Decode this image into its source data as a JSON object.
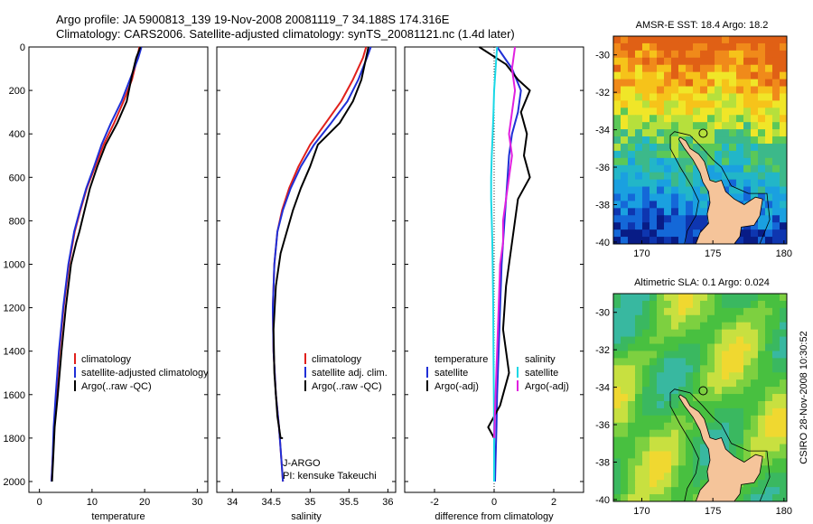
{
  "title": {
    "line1": "Argo profile: JA 5900813_139 19-Nov-2008 20081119_7 34.188S 174.316E",
    "line2": "Climatology: CARS2006. Satellite-adjusted climatology: synTS_20081121.nc (1.4d later)"
  },
  "side_label": "CSIRO 28-Nov-2008 10:30:52",
  "colors": {
    "climatology": "#e0201c",
    "satellite": "#1f2fd6",
    "argo": "#000000",
    "sat_diff": "#19d8e6",
    "argo_adj": "#e020e0"
  },
  "chart_data": [
    {
      "type": "line",
      "xlabel": "temperature",
      "ylabel": "",
      "xlim": [
        -2,
        32
      ],
      "ylim": [
        2050,
        0
      ],
      "xticks": [
        "0",
        "10",
        "20",
        "30"
      ],
      "yticks": [
        "0",
        "200",
        "400",
        "600",
        "800",
        "1000",
        "1200",
        "1400",
        "1600",
        "1800",
        "2000"
      ],
      "legend": [
        "climatology",
        "satellite-adjusted climatology",
        "Argo(..raw -QC)"
      ],
      "series": [
        {
          "name": "climatology",
          "color": "red",
          "x": [
            19.0,
            18.6,
            17.6,
            16.0,
            14.2,
            12.2,
            10.6,
            9.0,
            7.8,
            6.7,
            5.6,
            4.6,
            3.8,
            3.2,
            2.8,
            2.5,
            2.3
          ],
          "y": [
            0,
            50,
            150,
            250,
            350,
            450,
            550,
            650,
            750,
            850,
            1000,
            1200,
            1400,
            1600,
            1750,
            1900,
            2000
          ]
        },
        {
          "name": "satellite-adjusted climatology",
          "color": "blue",
          "x": [
            19.4,
            18.8,
            17.2,
            15.6,
            13.6,
            11.8,
            10.4,
            8.9,
            7.7,
            6.6,
            5.5,
            4.5,
            3.7,
            3.1,
            2.7,
            2.5,
            2.3
          ],
          "y": [
            0,
            50,
            150,
            250,
            350,
            450,
            550,
            650,
            750,
            850,
            1000,
            1200,
            1400,
            1600,
            1750,
            1900,
            2000
          ]
        },
        {
          "name": "Argo(..raw -QC)",
          "color": "black",
          "x": [
            19.2,
            18.4,
            17.6,
            16.6,
            14.8,
            12.6,
            11.0,
            9.6,
            8.6,
            7.6,
            7.0,
            6.0,
            5.0,
            4.2,
            3.5,
            2.9,
            2.6,
            2.4
          ],
          "y": [
            0,
            50,
            130,
            250,
            350,
            450,
            550,
            650,
            750,
            850,
            900,
            1000,
            1200,
            1400,
            1600,
            1750,
            1900,
            2000
          ]
        }
      ]
    },
    {
      "type": "line",
      "xlabel": "salinity",
      "xlim": [
        33.8,
        36.1
      ],
      "ylim": [
        2050,
        0
      ],
      "xticks": [
        "34",
        "34.5",
        "35",
        "35.5",
        "36"
      ],
      "legend": [
        "climatology",
        "satellite adj. clim.",
        "Argo(..raw -QC)"
      ],
      "annotations": [
        "J-ARGO",
        "PI: kensuke Takeuchi"
      ],
      "series": [
        {
          "name": "climatology",
          "color": "red",
          "x": [
            35.72,
            35.68,
            35.55,
            35.4,
            35.2,
            35.0,
            34.85,
            34.73,
            34.64,
            34.58,
            34.54,
            34.52,
            34.53,
            34.56,
            34.6,
            34.63,
            34.65
          ],
          "y": [
            0,
            50,
            150,
            250,
            350,
            450,
            550,
            650,
            750,
            850,
            1000,
            1200,
            1400,
            1600,
            1750,
            1900,
            2000
          ]
        },
        {
          "name": "satellite adj. clim.",
          "color": "blue",
          "x": [
            35.78,
            35.73,
            35.62,
            35.48,
            35.27,
            35.05,
            34.88,
            34.75,
            34.65,
            34.58,
            34.54,
            34.52,
            34.53,
            34.56,
            34.6,
            34.63,
            34.65
          ],
          "y": [
            0,
            50,
            150,
            250,
            350,
            450,
            550,
            650,
            750,
            850,
            1000,
            1200,
            1400,
            1600,
            1750,
            1900,
            2000
          ]
        },
        {
          "name": "Argo(..raw -QC)",
          "color": "black",
          "x": [
            35.75,
            35.72,
            35.66,
            35.55,
            35.38,
            35.1,
            35.0,
            34.88,
            34.78,
            34.7,
            34.62,
            34.56,
            34.53,
            34.54,
            34.58,
            34.62,
            34.65
          ],
          "y": [
            0,
            50,
            150,
            250,
            350,
            450,
            550,
            650,
            750,
            850,
            950,
            1100,
            1300,
            1500,
            1700,
            1800,
            1800
          ]
        }
      ]
    },
    {
      "type": "line",
      "xlabel": "difference from climatology",
      "xlim": [
        -3,
        3
      ],
      "ylim": [
        2050,
        0
      ],
      "xticks": [
        "-2",
        "0",
        "2"
      ],
      "legend_temperature": [
        "temperature",
        "satellite",
        "Argo(-adj)"
      ],
      "legend_salinity": [
        "salinity",
        "satellite",
        "Argo(-adj)"
      ],
      "series": [
        {
          "name": "temperature satellite",
          "color": "blue",
          "x": [
            0.1,
            0.6,
            0.9,
            0.8,
            0.6,
            0.5,
            0.45,
            0.4,
            0.35,
            0.3,
            0.25,
            0.2,
            0.15,
            0.1,
            0.08,
            0.05,
            0.03
          ],
          "y": [
            0,
            100,
            200,
            300,
            400,
            500,
            600,
            700,
            800,
            900,
            1000,
            1200,
            1400,
            1600,
            1750,
            1900,
            2000
          ]
        },
        {
          "name": "temperature Argo(-adj)",
          "color": "black",
          "x": [
            -0.5,
            0.4,
            0.8,
            1.2,
            0.9,
            1.1,
            1.0,
            1.2,
            0.8,
            0.7,
            0.6,
            0.4,
            0.3,
            0.5,
            0.2,
            -0.2,
            0.0
          ],
          "y": [
            0,
            80,
            150,
            200,
            300,
            400,
            500,
            600,
            700,
            800,
            900,
            1100,
            1300,
            1500,
            1650,
            1750,
            1800
          ]
        },
        {
          "name": "salinity satellite",
          "color": "cyan",
          "x": [
            0.1,
            0.05,
            0.0,
            -0.02,
            -0.05,
            -0.08,
            -0.1,
            -0.1,
            -0.08,
            -0.06,
            -0.05,
            -0.03,
            -0.02,
            -0.01,
            0.0,
            0.0
          ],
          "y": [
            0,
            100,
            200,
            300,
            400,
            500,
            600,
            700,
            800,
            900,
            1000,
            1200,
            1400,
            1600,
            1800,
            2000
          ]
        },
        {
          "name": "salinity Argo(-adj)",
          "color": "magenta",
          "x": [
            0.7,
            0.6,
            0.7,
            0.6,
            0.5,
            0.6,
            0.5,
            0.4,
            0.3,
            0.3,
            0.2,
            0.15,
            0.1,
            0.05,
            0.0
          ],
          "y": [
            0,
            100,
            200,
            300,
            400,
            500,
            600,
            700,
            800,
            900,
            1000,
            1200,
            1400,
            1600,
            1800
          ]
        }
      ]
    }
  ],
  "maps": [
    {
      "title": "AMSR-E SST: 18.4 Argo: 18.2",
      "xticks": [
        "170",
        "175",
        "180"
      ],
      "yticks": [
        "-30",
        "-32",
        "-34",
        "-36",
        "-38",
        "-40"
      ],
      "colors": [
        "#e06015",
        "#f08a1a",
        "#f6c31a",
        "#f0e628",
        "#b6e03c",
        "#5bc858",
        "#3cb98a",
        "#22b6c8",
        "#1aa0e0",
        "#1468d8",
        "#0e36b0",
        "#081c86"
      ],
      "land": "#f5c49a"
    },
    {
      "title": "Altimetric SLA: 0.1 Argo: 0.024",
      "xticks": [
        "170",
        "175",
        "180"
      ],
      "yticks": [
        "-30",
        "-32",
        "-34",
        "-36",
        "-38",
        "-40"
      ],
      "colors": [
        "#f0d830",
        "#c8e040",
        "#7dd040",
        "#48c040",
        "#3ab860",
        "#38b8a0",
        "#40b8c8"
      ],
      "land": "#f5c49a"
    }
  ]
}
